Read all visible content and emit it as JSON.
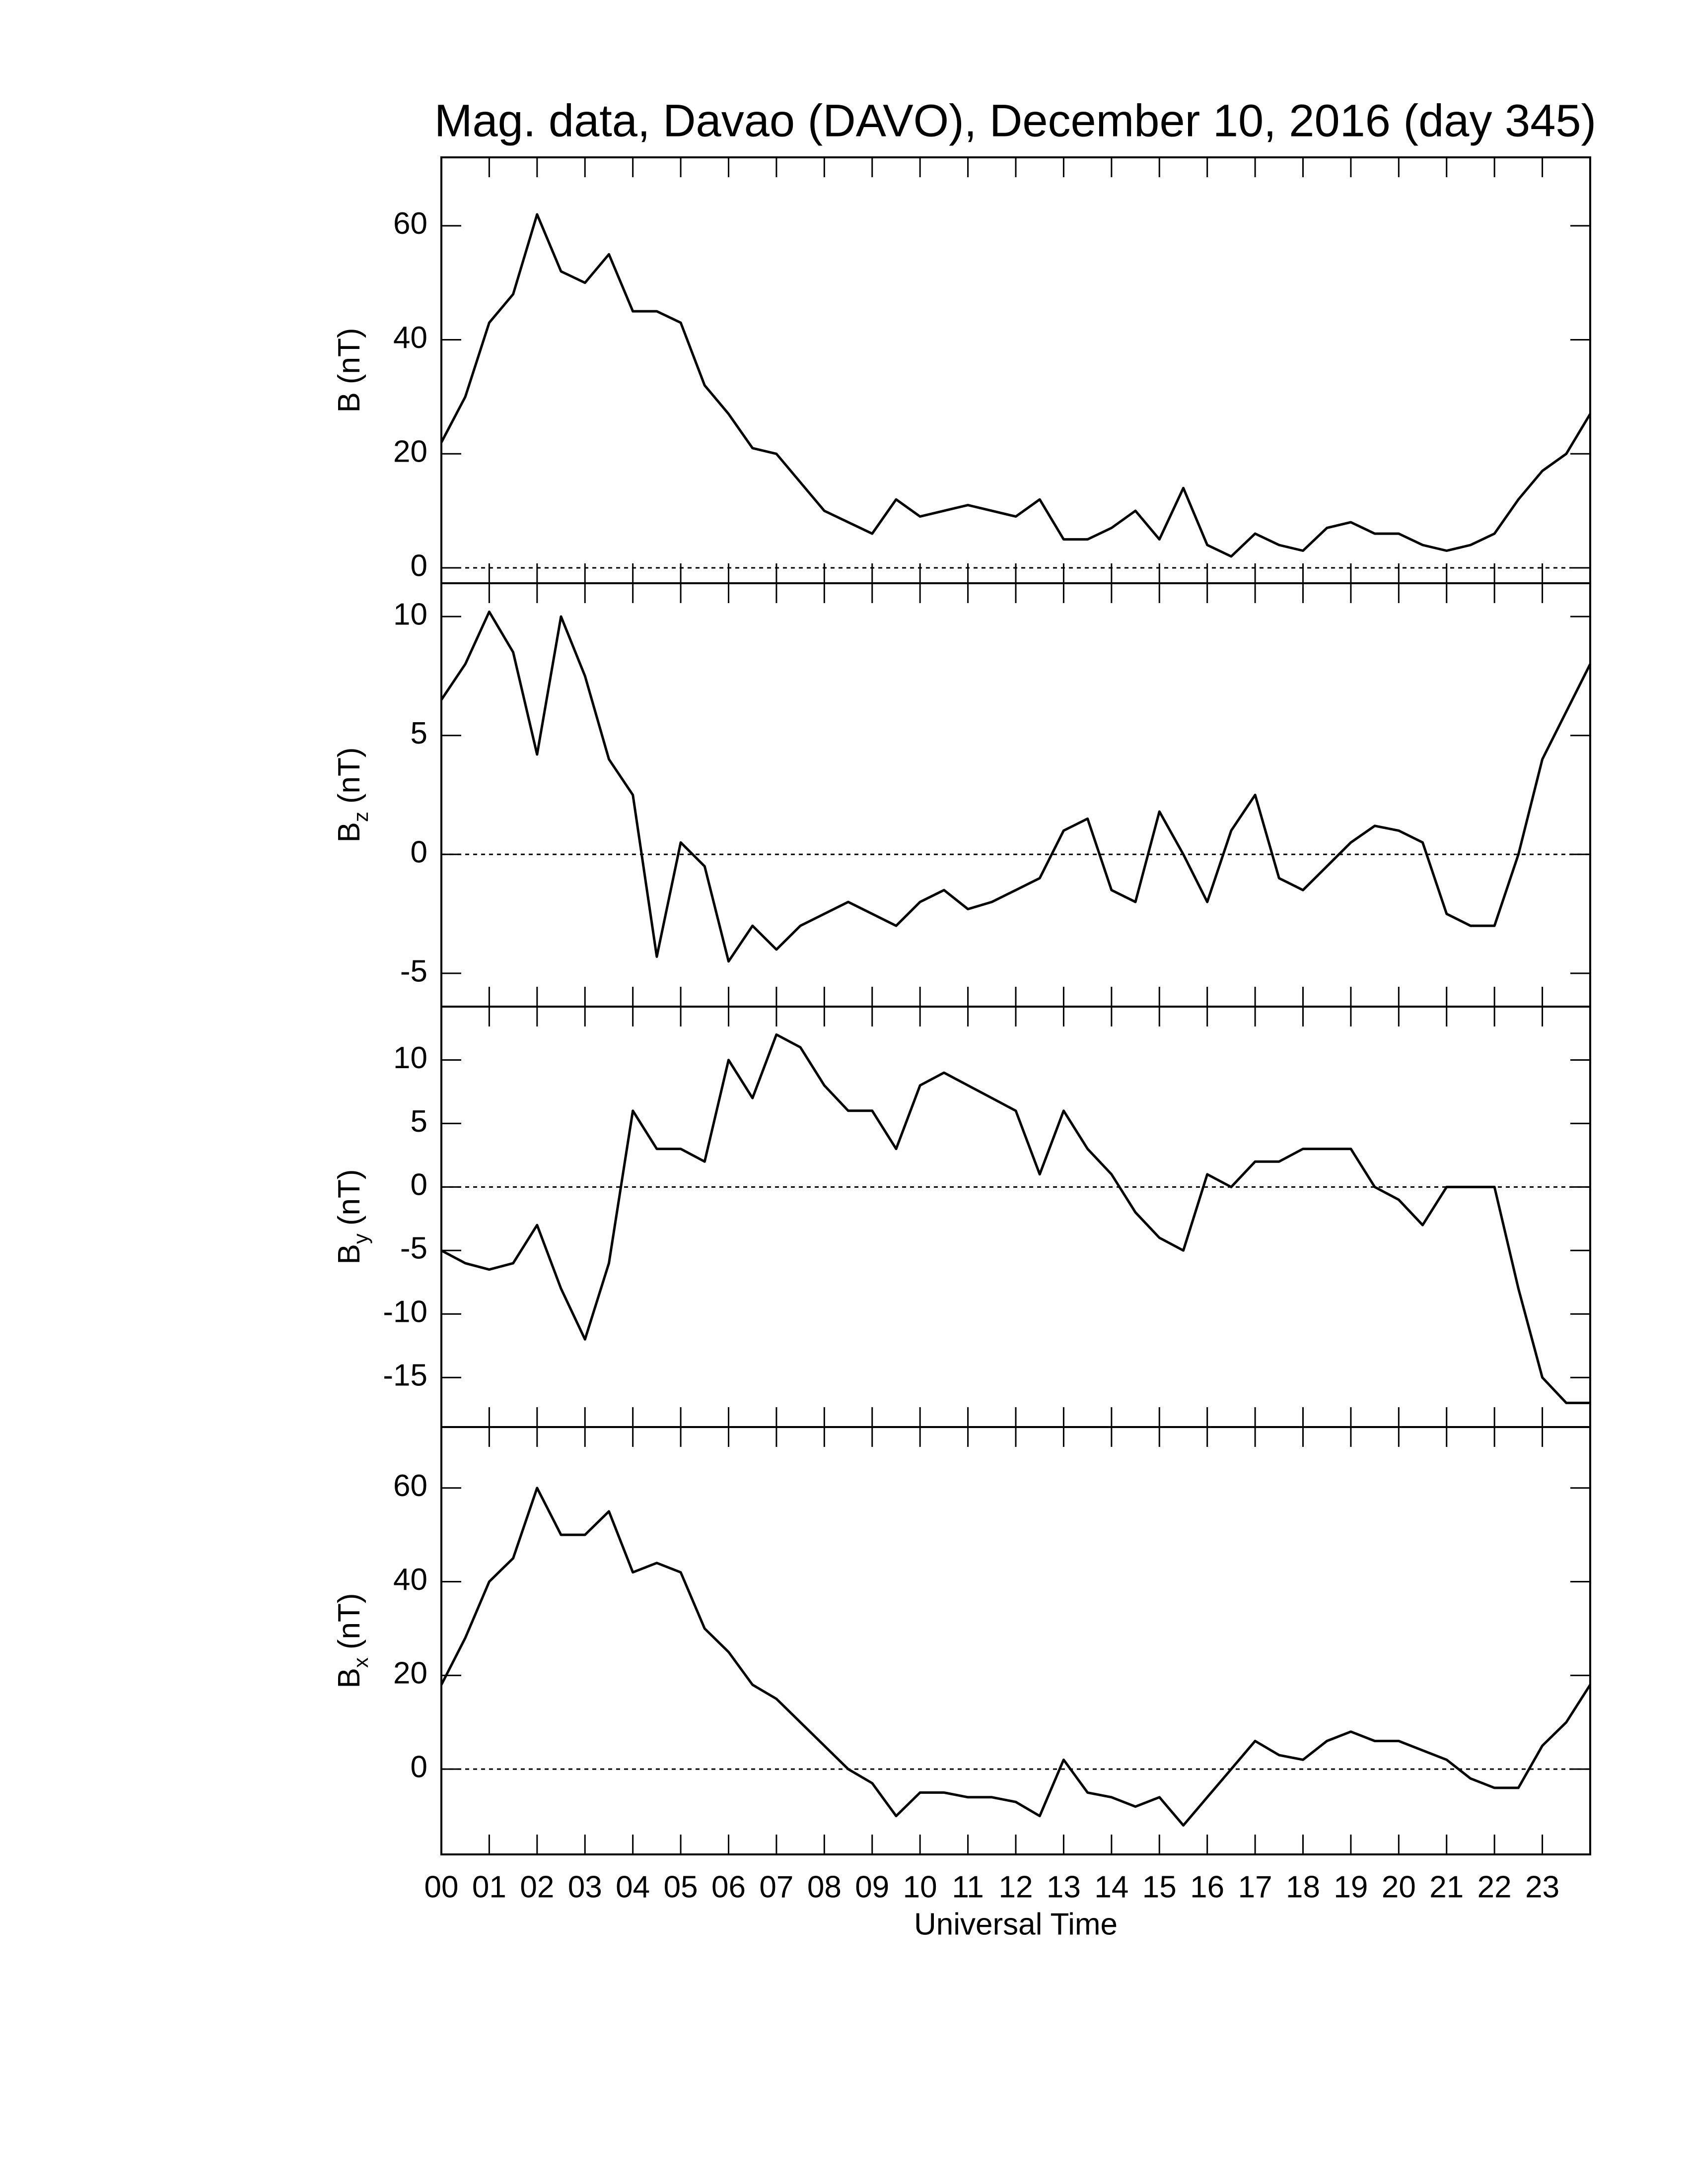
{
  "chart_data": [
    {
      "type": "line",
      "title": "Mag. data, Davao (DAVO), December 10, 2016 (day 345)",
      "ylabel": "B",
      "ylabel_unit": "(nT)",
      "xlim": [
        0,
        24
      ],
      "ylim": [
        -2.7,
        72
      ],
      "yticks": [
        0,
        20,
        40,
        60
      ],
      "reference_line": 0,
      "color": "#000000",
      "x": [
        0,
        0.5,
        1,
        1.5,
        2,
        2.5,
        3,
        3.5,
        4,
        4.5,
        5,
        5.5,
        6,
        6.5,
        7,
        7.5,
        8,
        8.5,
        9,
        9.5,
        10,
        10.5,
        11,
        11.5,
        12,
        12.5,
        13,
        13.5,
        14,
        14.5,
        15,
        15.5,
        16,
        16.5,
        17,
        17.5,
        18,
        18.5,
        19,
        19.5,
        20,
        20.5,
        21,
        21.5,
        22,
        22.5,
        23,
        23.5,
        24
      ],
      "values": [
        22,
        30,
        43,
        48,
        62,
        52,
        50,
        55,
        45,
        45,
        43,
        32,
        27,
        21,
        20,
        15,
        10,
        8,
        6,
        12,
        9,
        10,
        11,
        10,
        9,
        12,
        5,
        5,
        7,
        10,
        5,
        14,
        4,
        2,
        6,
        4,
        3,
        7,
        8,
        6,
        6,
        4,
        3,
        4,
        6,
        12,
        17,
        20,
        27
      ]
    },
    {
      "type": "line",
      "ylabel": "B",
      "ylabel_sub": "z",
      "ylabel_unit": "(nT)",
      "xlim": [
        0,
        24
      ],
      "ylim": [
        -6.4,
        11.4
      ],
      "yticks": [
        -5,
        0,
        5,
        10
      ],
      "reference_line": 0,
      "color": "#000000",
      "x": [
        0,
        0.5,
        1,
        1.5,
        2,
        2.5,
        3,
        3.5,
        4,
        4.5,
        5,
        5.5,
        6,
        6.5,
        7,
        7.5,
        8,
        8.5,
        9,
        9.5,
        10,
        10.5,
        11,
        11.5,
        12,
        12.5,
        13,
        13.5,
        14,
        14.5,
        15,
        15.5,
        16,
        16.5,
        17,
        17.5,
        18,
        18.5,
        19,
        19.5,
        20,
        20.5,
        21,
        21.5,
        22,
        22.5,
        23,
        23.5,
        24
      ],
      "values": [
        6.5,
        8,
        10.2,
        8.5,
        4.2,
        10,
        7.5,
        4,
        2.5,
        -4.3,
        0.5,
        -0.5,
        -4.5,
        -3,
        -4,
        -3,
        -2.5,
        -2,
        -2.5,
        -3,
        -2,
        -1.5,
        -2.3,
        -2,
        -1.5,
        -1,
        1,
        1.5,
        -1.5,
        -2,
        1.8,
        0,
        -2,
        1,
        2.5,
        -1,
        -1.5,
        -0.5,
        0.5,
        1.2,
        1,
        0.5,
        -2.5,
        -3,
        -3,
        0,
        4,
        6,
        8
      ]
    },
    {
      "type": "line",
      "ylabel": "B",
      "ylabel_sub": "y",
      "ylabel_unit": "(nT)",
      "xlim": [
        0,
        24
      ],
      "ylim": [
        -18.9,
        14.2
      ],
      "yticks": [
        -15,
        -10,
        -5,
        0,
        5,
        10
      ],
      "reference_line": 0,
      "color": "#000000",
      "x": [
        0,
        0.5,
        1,
        1.5,
        2,
        2.5,
        3,
        3.5,
        4,
        4.5,
        5,
        5.5,
        6,
        6.5,
        7,
        7.5,
        8,
        8.5,
        9,
        9.5,
        10,
        10.5,
        11,
        11.5,
        12,
        12.5,
        13,
        13.5,
        14,
        14.5,
        15,
        15.5,
        16,
        16.5,
        17,
        17.5,
        18,
        18.5,
        19,
        19.5,
        20,
        20.5,
        21,
        21.5,
        22,
        22.5,
        23,
        23.5,
        24
      ],
      "values": [
        -5,
        -6,
        -6.5,
        -6,
        -3,
        -8,
        -12,
        -6,
        6,
        3,
        3,
        2,
        10,
        7,
        12,
        11,
        8,
        6,
        6,
        3,
        8,
        9,
        8,
        7,
        6,
        1,
        6,
        3,
        1,
        -2,
        -4,
        -5,
        1,
        0,
        2,
        2,
        3,
        3,
        3,
        0,
        -1,
        -3,
        0,
        0,
        0,
        -8,
        -15,
        -17,
        -17
      ]
    },
    {
      "type": "line",
      "ylabel": "B",
      "ylabel_sub": "x",
      "ylabel_unit": "(nT)",
      "xlabel": "Universal Time",
      "xlim": [
        0,
        24
      ],
      "ylim": [
        -18.2,
        73
      ],
      "yticks": [
        0,
        20,
        40,
        60
      ],
      "reference_line": 0,
      "color": "#000000",
      "xticks": [
        {
          "value": 0,
          "label": "00"
        },
        {
          "value": 1,
          "label": "01"
        },
        {
          "value": 2,
          "label": "02"
        },
        {
          "value": 3,
          "label": "03"
        },
        {
          "value": 4,
          "label": "04"
        },
        {
          "value": 5,
          "label": "05"
        },
        {
          "value": 6,
          "label": "06"
        },
        {
          "value": 7,
          "label": "07"
        },
        {
          "value": 8,
          "label": "08"
        },
        {
          "value": 9,
          "label": "09"
        },
        {
          "value": 10,
          "label": "10"
        },
        {
          "value": 11,
          "label": "11"
        },
        {
          "value": 12,
          "label": "12"
        },
        {
          "value": 13,
          "label": "13"
        },
        {
          "value": 14,
          "label": "14"
        },
        {
          "value": 15,
          "label": "15"
        },
        {
          "value": 16,
          "label": "16"
        },
        {
          "value": 17,
          "label": "17"
        },
        {
          "value": 18,
          "label": "18"
        },
        {
          "value": 19,
          "label": "19"
        },
        {
          "value": 20,
          "label": "20"
        },
        {
          "value": 21,
          "label": "21"
        },
        {
          "value": 22,
          "label": "22"
        },
        {
          "value": 23,
          "label": "23"
        }
      ],
      "x": [
        0,
        0.5,
        1,
        1.5,
        2,
        2.5,
        3,
        3.5,
        4,
        4.5,
        5,
        5.5,
        6,
        6.5,
        7,
        7.5,
        8,
        8.5,
        9,
        9.5,
        10,
        10.5,
        11,
        11.5,
        12,
        12.5,
        13,
        13.5,
        14,
        14.5,
        15,
        15.5,
        16,
        16.5,
        17,
        17.5,
        18,
        18.5,
        19,
        19.5,
        20,
        20.5,
        21,
        21.5,
        22,
        22.5,
        23,
        23.5,
        24
      ],
      "values": [
        18,
        28,
        40,
        45,
        60,
        50,
        50,
        55,
        42,
        44,
        42,
        30,
        25,
        18,
        15,
        10,
        5,
        0,
        -3,
        -10,
        -5,
        -5,
        -6,
        -6,
        -7,
        -10,
        2,
        -5,
        -6,
        -8,
        -6,
        -12,
        -6,
        0,
        6,
        3,
        2,
        6,
        8,
        6,
        6,
        4,
        2,
        -2,
        -4,
        -4,
        5,
        10,
        18
      ]
    }
  ]
}
